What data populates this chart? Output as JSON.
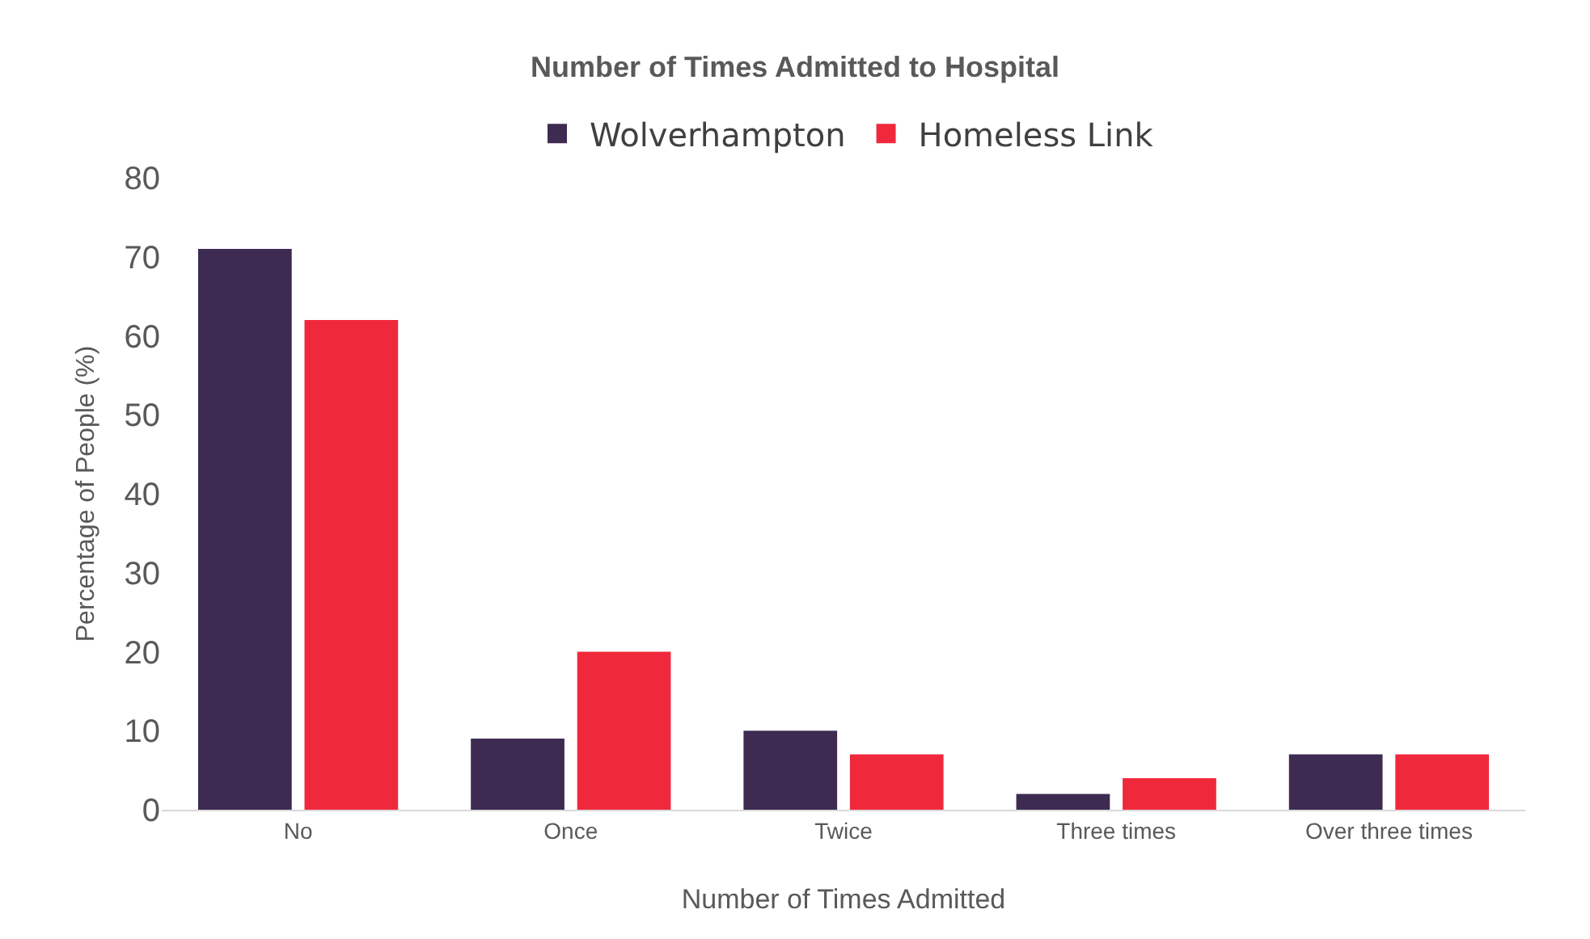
{
  "chart_data": {
    "type": "bar",
    "title": "Number of Times Admitted to Hospital",
    "xlabel": "Number of Times Admitted",
    "ylabel": "Percentage of People (%)",
    "categories": [
      "No",
      "Once",
      "Twice",
      "Three times",
      "Over three times"
    ],
    "series": [
      {
        "name": "Wolverhampton",
        "color": "#3d2b52",
        "values": [
          71,
          9,
          10,
          2,
          7
        ]
      },
      {
        "name": "Homeless Link",
        "color": "#f0283c",
        "values": [
          62,
          20,
          7,
          4,
          7
        ]
      }
    ],
    "ylim": [
      0,
      80
    ],
    "yticks": [
      0,
      10,
      20,
      30,
      40,
      50,
      60,
      70,
      80
    ],
    "grid": false,
    "legend": "top"
  }
}
